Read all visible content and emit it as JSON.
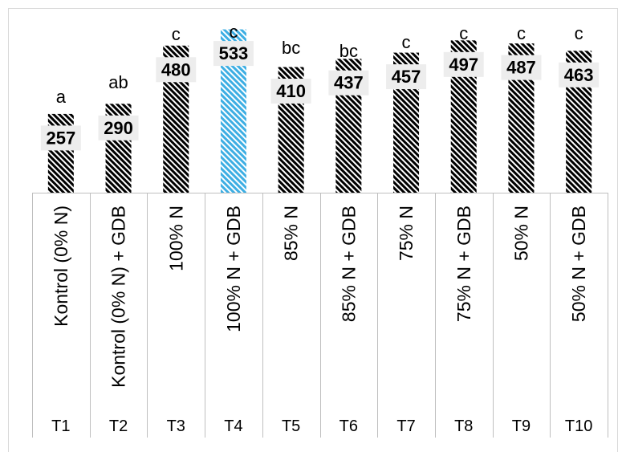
{
  "chart_data": {
    "type": "bar",
    "categories": [
      "T1",
      "T2",
      "T3",
      "T4",
      "T5",
      "T6",
      "T7",
      "T8",
      "T9",
      "T10"
    ],
    "category_descriptions": [
      "Kontrol (0% N)",
      "Kontrol (0% N) + GDB",
      "100% N",
      "100% N + GDB",
      "85% N",
      "85% N + GDB",
      "75% N",
      "75% N + GDB",
      "50% N",
      "50% N + GDB"
    ],
    "values": [
      257,
      290,
      480,
      533,
      410,
      437,
      457,
      497,
      487,
      463
    ],
    "significance_letters": [
      "a",
      "ab",
      "c",
      "c",
      "bc",
      "bc",
      "c",
      "c",
      "c",
      "c"
    ],
    "bar_colors": [
      "#000000",
      "#000000",
      "#000000",
      "#3daee3",
      "#000000",
      "#000000",
      "#000000",
      "#000000",
      "#000000",
      "#000000"
    ],
    "ylim": [
      0,
      600
    ],
    "grid": false
  }
}
